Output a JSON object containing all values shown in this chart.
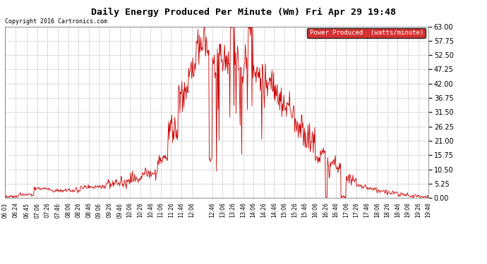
{
  "title": "Daily Energy Produced Per Minute (Wm) Fri Apr 29 19:48",
  "copyright": "Copyright 2016 Cartronics.com",
  "legend_label": "Power Produced  (watts/minute)",
  "legend_bg": "#cc0000",
  "legend_fg": "#ffffff",
  "line_color": "#cc0000",
  "bg_color": "#ffffff",
  "grid_color": "#bbbbbb",
  "ylim": [
    0.0,
    63.0
  ],
  "yticks": [
    0.0,
    5.25,
    10.5,
    15.75,
    21.0,
    26.25,
    31.5,
    36.75,
    42.0,
    47.25,
    52.5,
    57.75,
    63.0
  ],
  "x_start_minutes": 363,
  "x_end_minutes": 1186,
  "xtick_labels": [
    "06:03",
    "06:24",
    "06:45",
    "07:06",
    "07:26",
    "07:46",
    "08:06",
    "08:26",
    "08:46",
    "09:06",
    "09:26",
    "09:46",
    "10:06",
    "10:26",
    "10:46",
    "11:06",
    "11:26",
    "11:46",
    "12:06",
    "12:46",
    "13:06",
    "13:26",
    "13:46",
    "14:06",
    "14:26",
    "14:46",
    "15:06",
    "15:26",
    "15:46",
    "16:06",
    "16:26",
    "16:46",
    "17:06",
    "17:26",
    "17:46",
    "18:06",
    "18:26",
    "18:46",
    "19:06",
    "19:26",
    "19:46"
  ],
  "xtick_minutes": [
    363,
    384,
    405,
    426,
    446,
    466,
    486,
    506,
    526,
    546,
    566,
    586,
    606,
    626,
    646,
    666,
    686,
    706,
    726,
    766,
    786,
    806,
    826,
    846,
    866,
    886,
    906,
    926,
    946,
    966,
    986,
    1006,
    1026,
    1046,
    1066,
    1086,
    1106,
    1126,
    1146,
    1166,
    1186
  ],
  "figwidth": 6.9,
  "figheight": 3.75,
  "dpi": 100
}
